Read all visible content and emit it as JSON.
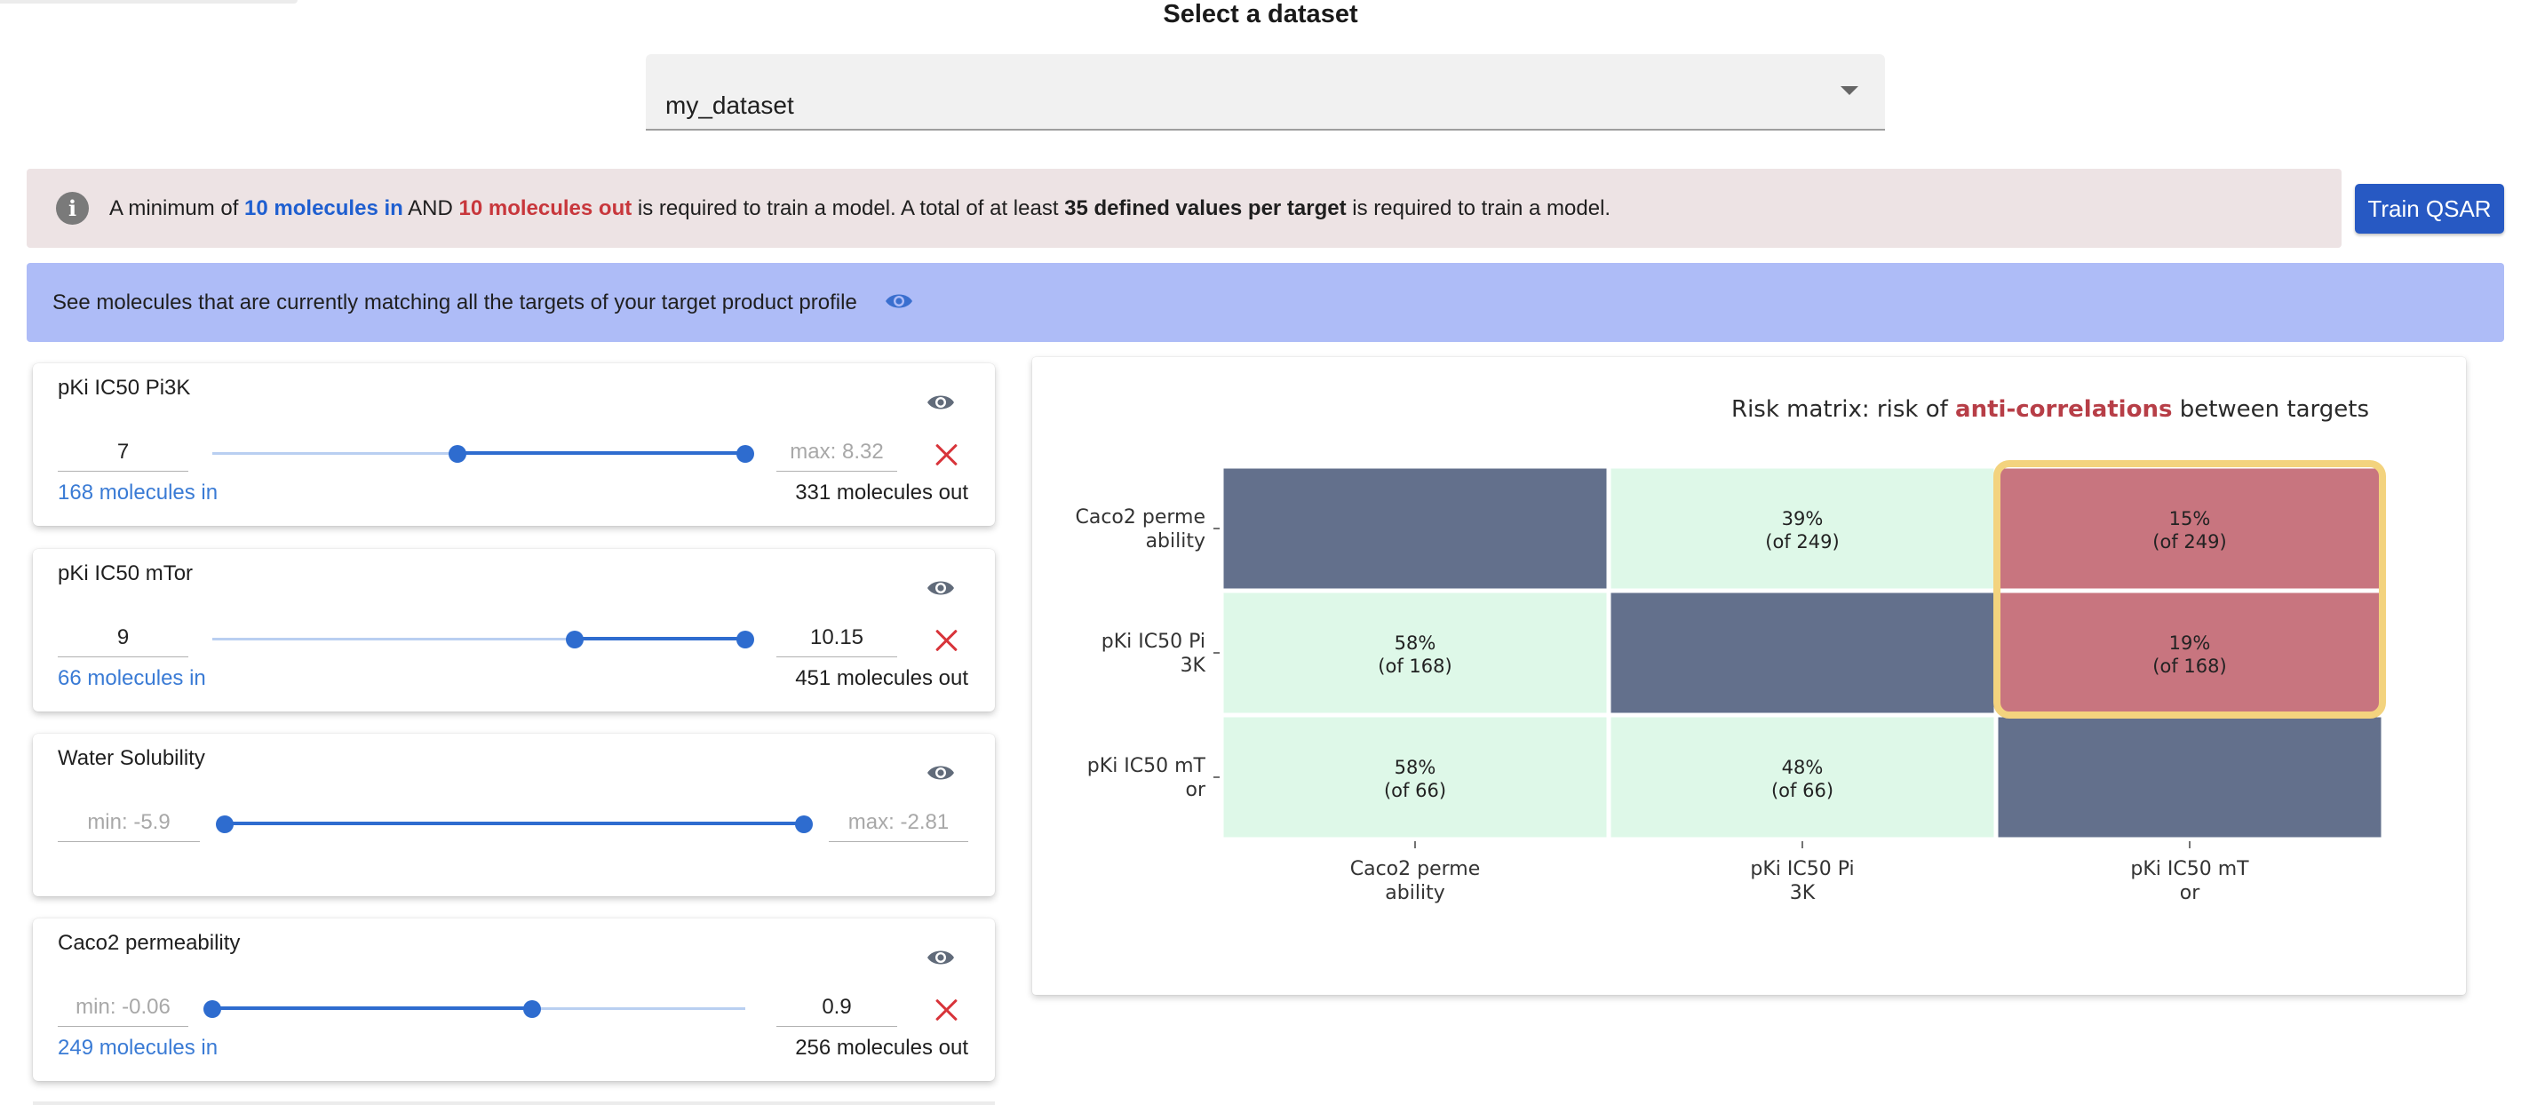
{
  "page": {
    "title": "Select a dataset"
  },
  "dataset_select": {
    "value": "my_dataset"
  },
  "info_banner": {
    "part1": "A minimum of ",
    "molecules_in": "10 molecules in",
    "part2": " AND ",
    "molecules_out": "10 molecules out",
    "part3": " is required to train a model. A total of at least ",
    "defined_values": "35 defined values per target",
    "part4": " is required to train a model."
  },
  "train_button": {
    "label": "Train QSAR"
  },
  "match_banner": {
    "text": "See molecules that are currently matching all the targets of your target product profile"
  },
  "targets": [
    {
      "name": "pKi IC50 Pi3K",
      "min_value": "7",
      "min_placeholder": "",
      "max_value": "",
      "max_placeholder": "max: 8.32",
      "range": [
        0.46,
        1.0
      ],
      "molecules_in": "168 molecules in",
      "molecules_out": "331 molecules out"
    },
    {
      "name": "pKi IC50 mTor",
      "min_value": "9",
      "min_placeholder": "",
      "max_value": "10.15",
      "max_placeholder": "",
      "range": [
        0.68,
        1.0
      ],
      "molecules_in": "66 molecules in",
      "molecules_out": "451 molecules out"
    },
    {
      "name": "Water Solubility",
      "min_value": "",
      "min_placeholder": "min: -5.9",
      "max_value": "",
      "max_placeholder": "max: -2.81",
      "range": [
        0.0,
        1.0
      ],
      "molecules_in": "",
      "molecules_out": ""
    },
    {
      "name": "Caco2 permeability",
      "min_value": "",
      "min_placeholder": "min: -0.06",
      "max_value": "0.9",
      "max_placeholder": "",
      "range": [
        0.0,
        0.6
      ],
      "molecules_in": "249 molecules in",
      "molecules_out": "256 molecules out"
    }
  ],
  "risk_matrix": {
    "title_prefix": "Risk matrix: risk of ",
    "title_emph": "anti-correlations",
    "title_suffix": " between targets",
    "colors": {
      "self": "#63708c",
      "safe": "#def8e8",
      "risk": "#c8757f",
      "highlight": "#f3d37e",
      "emph": "#b73e47"
    },
    "chart_data": {
      "type": "heatmap",
      "rows": [
        [
          "Caco2 perme",
          "ability"
        ],
        [
          "pKi IC50 Pi",
          "3K"
        ],
        [
          "pKi IC50 mT",
          "or"
        ]
      ],
      "columns": [
        [
          "Caco2 perme",
          "ability"
        ],
        [
          "pKi IC50 Pi",
          "3K"
        ],
        [
          "pKi IC50 mT",
          "or"
        ]
      ],
      "cells": [
        [
          {
            "kind": "self",
            "pct": "",
            "of": ""
          },
          {
            "kind": "safe",
            "pct": "39%",
            "of": "(of 249)"
          },
          {
            "kind": "risk",
            "pct": "15%",
            "of": "(of 249)"
          }
        ],
        [
          {
            "kind": "safe",
            "pct": "58%",
            "of": "(of 168)"
          },
          {
            "kind": "self",
            "pct": "",
            "of": ""
          },
          {
            "kind": "risk",
            "pct": "19%",
            "of": "(of 168)"
          }
        ],
        [
          {
            "kind": "safe",
            "pct": "58%",
            "of": "(of 66)"
          },
          {
            "kind": "safe",
            "pct": "48%",
            "of": "(of 66)"
          },
          {
            "kind": "self",
            "pct": "",
            "of": ""
          }
        ]
      ],
      "highlighted_column": 2,
      "highlighted_rows": [
        0,
        1
      ]
    }
  }
}
